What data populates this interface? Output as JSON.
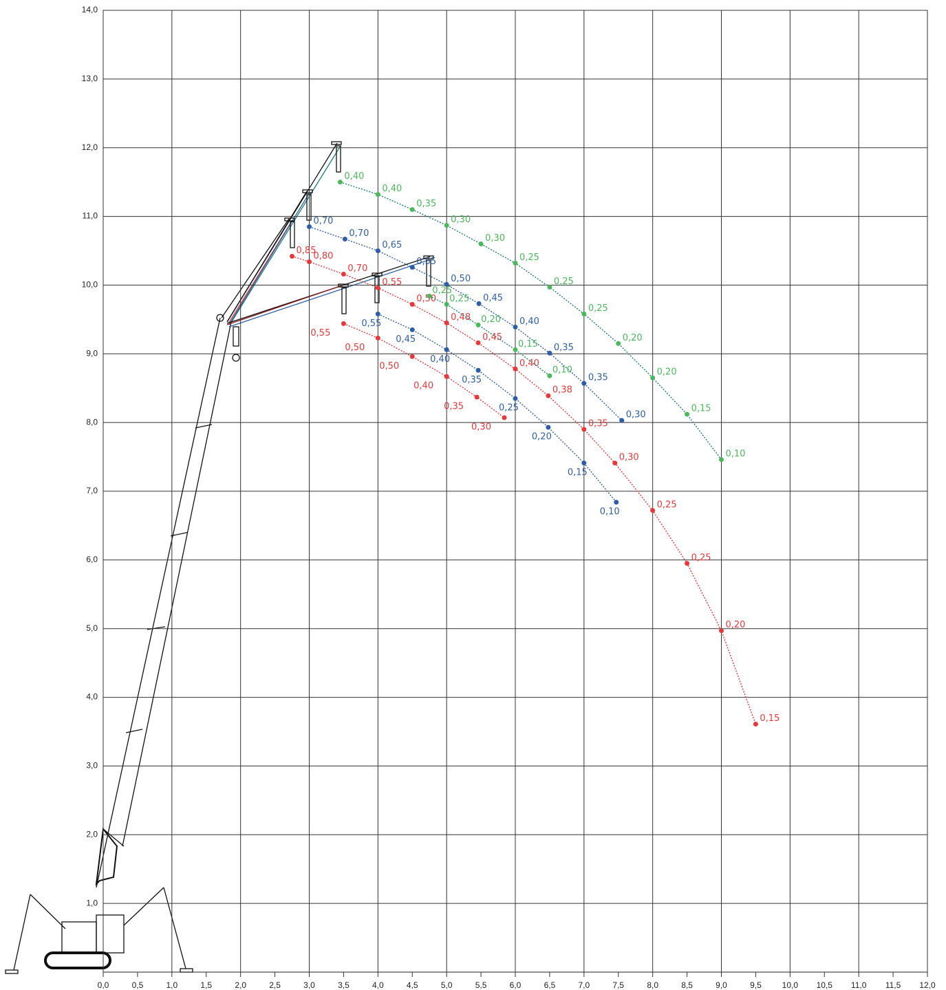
{
  "chart_data": {
    "type": "scatter",
    "xlim": [
      0,
      12
    ],
    "ylim": [
      0,
      14
    ],
    "xticks": [
      {
        "value": 0,
        "label": "0,0"
      },
      {
        "value": 0.5,
        "label": "0,5"
      },
      {
        "value": 1,
        "label": "1,0"
      },
      {
        "value": 1.5,
        "label": "1,5"
      },
      {
        "value": 2,
        "label": "2,0"
      },
      {
        "value": 2.5,
        "label": "2,5"
      },
      {
        "value": 3,
        "label": "3,0"
      },
      {
        "value": 3.5,
        "label": "3,5"
      },
      {
        "value": 4,
        "label": "4,0"
      },
      {
        "value": 4.5,
        "label": "4,5"
      },
      {
        "value": 5,
        "label": "5,0"
      },
      {
        "value": 5.5,
        "label": "5,5"
      },
      {
        "value": 6,
        "label": "6,0"
      },
      {
        "value": 6.5,
        "label": "6,5"
      },
      {
        "value": 7,
        "label": "7,0"
      },
      {
        "value": 7.5,
        "label": "7,5"
      },
      {
        "value": 8,
        "label": "8,0"
      },
      {
        "value": 8.5,
        "label": "8,5"
      },
      {
        "value": 9,
        "label": "9,0"
      },
      {
        "value": 9.5,
        "label": "9,5"
      },
      {
        "value": 10,
        "label": "10,0"
      },
      {
        "value": 10.5,
        "label": "10,5"
      },
      {
        "value": 11,
        "label": "11,0"
      },
      {
        "value": 11.5,
        "label": "11,5"
      },
      {
        "value": 12,
        "label": "12,0"
      }
    ],
    "yticks": [
      {
        "value": 1,
        "label": "1,0"
      },
      {
        "value": 2,
        "label": "2,0"
      },
      {
        "value": 3,
        "label": "3,0"
      },
      {
        "value": 4,
        "label": "4,0"
      },
      {
        "value": 5,
        "label": "5,0"
      },
      {
        "value": 6,
        "label": "6,0"
      },
      {
        "value": 7,
        "label": "7,0"
      },
      {
        "value": 8,
        "label": "8,0"
      },
      {
        "value": 9,
        "label": "9,0"
      },
      {
        "value": 10,
        "label": "10,0"
      },
      {
        "value": 11,
        "label": "11,0"
      },
      {
        "value": 12,
        "label": "12,0"
      },
      {
        "value": 13,
        "label": "13,0"
      },
      {
        "value": 14,
        "label": "14,0"
      }
    ],
    "grid": true,
    "series": [
      {
        "color": "#4cb85c",
        "line_color": "#1b7f74",
        "x": [
          3.45,
          4.0,
          4.5,
          5.0,
          5.5,
          6.0,
          6.5,
          7.0,
          7.5,
          8.0,
          8.5,
          9.0
        ],
        "y": [
          11.5,
          11.32,
          11.1,
          10.87,
          10.6,
          10.32,
          9.97,
          9.58,
          9.15,
          8.65,
          8.12,
          7.46
        ],
        "values": [
          0.4,
          0.4,
          0.35,
          0.3,
          0.3,
          0.25,
          0.25,
          0.25,
          0.2,
          0.2,
          0.15,
          0.1
        ],
        "value_labels": [
          "0,40",
          "0,40",
          "0,35",
          "0,30",
          "0,30",
          "0,25",
          "0,25",
          "0,25",
          "0,20",
          "0,20",
          "0,15",
          "0,10"
        ]
      },
      {
        "color": "#2e5ea8",
        "line_color": "#2e5ea8",
        "x": [
          3.0,
          3.52,
          4.0,
          4.5,
          5.0,
          5.47,
          6.0,
          6.5,
          7.0,
          7.55
        ],
        "y": [
          10.85,
          10.67,
          10.5,
          10.26,
          10.01,
          9.73,
          9.39,
          9.01,
          8.57,
          8.03
        ],
        "values": [
          0.7,
          0.7,
          0.65,
          0.55,
          0.5,
          0.45,
          0.4,
          0.35,
          0.35,
          0.3
        ],
        "value_labels": [
          "0,70",
          "0,70",
          "0,65",
          "0,55",
          "0,50",
          "0,45",
          "0,40",
          "0,35",
          "0,35",
          "0,30"
        ]
      },
      {
        "color": "#e8383a",
        "line_color": "#e8383a",
        "x": [
          2.75,
          3.0,
          3.5,
          4.0,
          4.5,
          5.0,
          5.46,
          6.0,
          6.48,
          7.0,
          7.45,
          8.0,
          8.5,
          9.0,
          9.5
        ],
        "y": [
          10.42,
          10.34,
          10.16,
          9.96,
          9.72,
          9.45,
          9.16,
          8.78,
          8.39,
          7.9,
          7.41,
          6.72,
          5.95,
          4.97,
          3.61
        ],
        "values": [
          0.85,
          0.8,
          0.7,
          0.55,
          0.5,
          0.48,
          0.45,
          0.4,
          0.38,
          0.35,
          0.3,
          0.25,
          0.25,
          0.2,
          0.15
        ],
        "value_labels": [
          "0,85",
          "0,80",
          "0,70",
          "0,55",
          "0,50",
          "0,48",
          "0,45",
          "0,40",
          "0,38",
          "0,35",
          "0,30",
          "0,25",
          "0,25",
          "0,20",
          "0,15"
        ]
      },
      {
        "color": "#4cb85c",
        "line_color": "#1b7f74",
        "x": [
          4.75,
          5.0,
          5.46,
          6.0,
          6.5
        ],
        "y": [
          9.84,
          9.72,
          9.42,
          9.06,
          8.68
        ],
        "values": [
          0.25,
          0.25,
          0.2,
          0.15,
          0.1
        ],
        "value_labels": [
          "0,25",
          "0,25",
          "0,20",
          "0,15",
          "0,10"
        ]
      },
      {
        "color": "#2e5ea8",
        "line_color": "#2e5ea8",
        "x": [
          4.0,
          4.5,
          5.0,
          5.46,
          6.0,
          6.48,
          7.0,
          7.47
        ],
        "y": [
          9.58,
          9.35,
          9.06,
          8.76,
          8.35,
          7.93,
          7.41,
          6.84
        ],
        "values": [
          0.55,
          0.45,
          0.4,
          0.35,
          0.25,
          0.2,
          0.15,
          0.1
        ],
        "value_labels": [
          "0,55",
          "0,45",
          "0,40",
          "0,35",
          "0,25",
          "0,20",
          "0,15",
          "0,10"
        ]
      },
      {
        "color": "#e8383a",
        "line_color": "#e8383a",
        "x": [
          3.5,
          4.0,
          4.5,
          5.0,
          5.44,
          5.84
        ],
        "y": [
          9.44,
          9.23,
          8.96,
          8.67,
          8.37,
          8.07
        ],
        "values": [
          0.55,
          0.5,
          0.5,
          0.4,
          0.35,
          0.3
        ],
        "value_labels": [
          "0,55",
          "0,50",
          "0,50",
          "0,40",
          "0,35",
          "0,30"
        ]
      }
    ]
  }
}
